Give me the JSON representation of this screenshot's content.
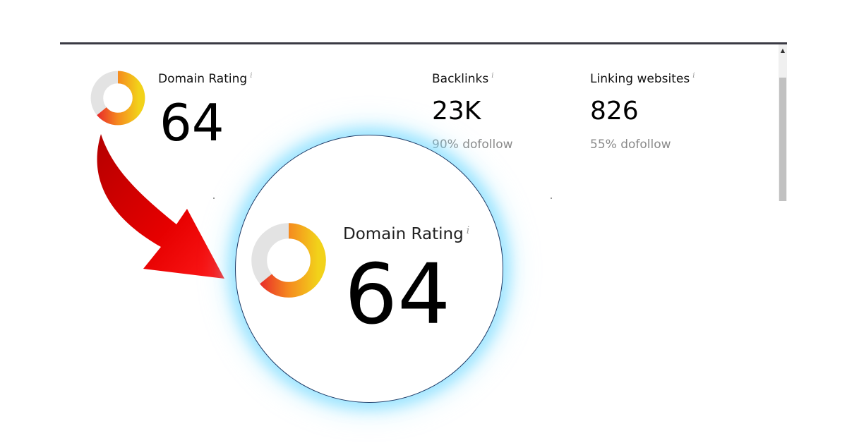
{
  "domain_rating": {
    "label": "Domain Rating",
    "info": "i",
    "value": "64",
    "gauge_percent": 64,
    "gauge_colors": {
      "track": "#e3e3e3",
      "start": "#f2d21a",
      "mid": "#f58a1f",
      "end": "#e8292a"
    }
  },
  "backlinks": {
    "label": "Backlinks",
    "info": "i",
    "value": "23K",
    "sub": "90% dofollow"
  },
  "linking_websites": {
    "label": "Linking websites",
    "info": "i",
    "value": "826",
    "sub": "55% dofollow"
  },
  "magnified": {
    "label": "Domain Rating",
    "info": "i",
    "value": "64"
  },
  "colors": {
    "arrow": "#e60000",
    "glow": "#6ed7ff",
    "rule": "#3a3a44"
  },
  "icons": [
    "domain-rating-gauge-icon",
    "info-icon",
    "red-curved-arrow",
    "magnifier-circle"
  ]
}
